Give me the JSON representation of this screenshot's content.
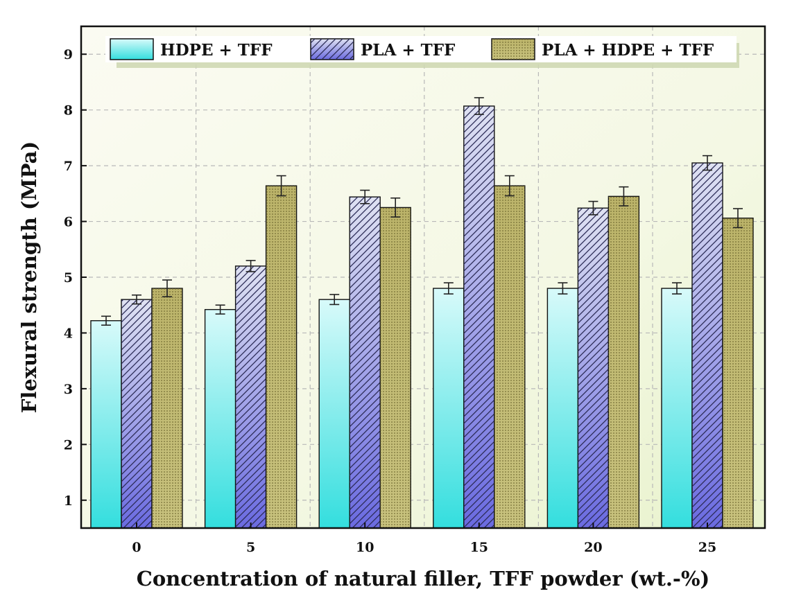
{
  "chart_data": {
    "type": "bar",
    "title": "",
    "xlabel": "Concentration of natural filler, TFF powder (wt.-%)",
    "ylabel": "Flexural strength (MPa)",
    "categories": [
      "0",
      "5",
      "10",
      "15",
      "20",
      "25"
    ],
    "ylim": [
      0.5,
      9.5
    ],
    "yticks": [
      1,
      2,
      3,
      4,
      5,
      6,
      7,
      8,
      9
    ],
    "grid": true,
    "legend_position": "top",
    "series": [
      {
        "name": "HDPE + TFF",
        "values": [
          4.22,
          4.42,
          4.6,
          4.8,
          4.8,
          4.8
        ],
        "errors": [
          0.08,
          0.08,
          0.09,
          0.1,
          0.1,
          0.1
        ],
        "color": "#3fe0e0",
        "pattern": "solid-gradient"
      },
      {
        "name": "PLA + TFF",
        "values": [
          4.6,
          5.2,
          6.44,
          8.07,
          6.24,
          7.05
        ],
        "errors": [
          0.08,
          0.1,
          0.12,
          0.15,
          0.12,
          0.13
        ],
        "color": "#6f6fe0",
        "pattern": "diagonal-hatch"
      },
      {
        "name": "PLA + HDPE + TFF",
        "values": [
          4.8,
          6.64,
          6.25,
          6.64,
          6.45,
          6.06
        ],
        "errors": [
          0.15,
          0.18,
          0.17,
          0.18,
          0.17,
          0.17
        ],
        "color": "#b8b060",
        "pattern": "grid-dots"
      }
    ]
  }
}
